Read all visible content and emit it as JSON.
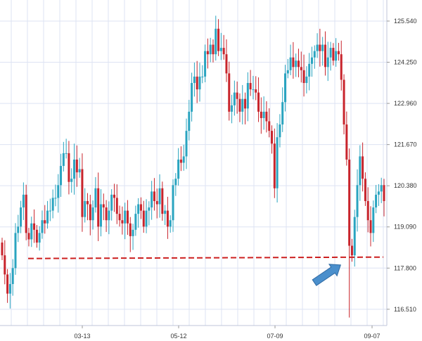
{
  "chart_data": {
    "type": "candlestick",
    "title": "",
    "xlabel": "",
    "ylabel": "",
    "y_ticks": [
      "125.540",
      "124.250",
      "122.960",
      "121.670",
      "120.380",
      "119.090",
      "117.800",
      "116.510"
    ],
    "x_ticks": [
      "03-13",
      "05-12",
      "07-09",
      "09-07"
    ],
    "ylim": [
      116.0,
      126.2
    ],
    "support_level": 118.1,
    "grid": true,
    "y_axis_position": "right",
    "annotations": [
      {
        "kind": "arrow",
        "points_to": "spike low near the support line",
        "color": "#4a8fcc"
      }
    ],
    "colors": {
      "up": "#2aa4c0",
      "down": "#c8242c",
      "grid": "#dde3f3",
      "support_line": "#cc1f1f",
      "arrow": "#4a8fcc"
    },
    "candles_close": [
      118.2,
      117.6,
      117.0,
      117.3,
      117.8,
      118.9,
      119.1,
      119.7,
      120.1,
      118.9,
      118.7,
      119.2,
      119.0,
      118.6,
      118.9,
      119.3,
      119.2,
      119.6,
      119.6,
      120.0,
      120.0,
      120.4,
      121.0,
      121.4,
      121.4,
      120.5,
      120.6,
      121.2,
      120.8,
      120.9,
      119.4,
      119.9,
      119.8,
      119.3,
      119.7,
      120.3,
      119.1,
      119.8,
      119.7,
      119.3,
      119.6,
      120.1,
      120.0,
      119.5,
      119.3,
      119.2,
      119.6,
      119.2,
      118.8,
      119.0,
      119.5,
      119.8,
      119.6,
      119.1,
      119.6,
      119.7,
      120.2,
      119.9,
      119.8,
      120.3,
      119.5,
      119.6,
      119.1,
      119.3,
      120.4,
      120.6,
      121.2,
      121.1,
      121.3,
      122.1,
      122.7,
      123.6,
      123.8,
      123.4,
      123.8,
      123.8,
      124.6,
      124.5,
      124.8,
      124.5,
      125.3,
      124.6,
      124.7,
      124.5,
      123.9,
      122.7,
      122.9,
      123.3,
      123.1,
      122.7,
      123.1,
      122.8,
      123.6,
      123.4,
      123.4,
      123.3,
      122.7,
      122.5,
      122.7,
      122.4,
      122.1,
      121.7,
      120.3,
      121.9,
      122.3,
      123.0,
      123.9,
      124.0,
      124.4,
      124.1,
      124.3,
      124.1,
      124.0,
      123.6,
      123.8,
      124.2,
      124.4,
      124.6,
      124.8,
      124.6,
      124.8,
      124.1,
      124.4,
      124.7,
      124.3,
      124.6,
      124.5,
      123.7,
      122.3,
      121.2,
      118.5,
      118.2,
      119.4,
      120.4,
      121.3,
      120.6,
      119.9,
      119.3,
      118.9,
      119.7,
      120.1,
      120.2,
      120.4,
      119.9
    ]
  }
}
